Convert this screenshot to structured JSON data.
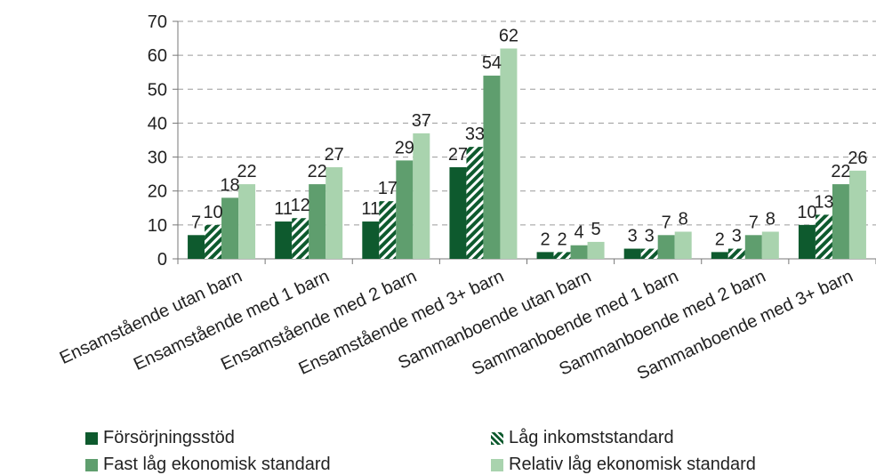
{
  "chart_data": {
    "type": "bar",
    "categories": [
      "Ensamstående utan barn",
      "Ensamstående med 1 barn",
      "Ensamstående med 2 barn",
      "Ensamstående med 3+ barn",
      "Sammanboende utan barn",
      "Sammanboende med 1 barn",
      "Sammanboende med 2 barn",
      "Sammanboende med 3+ barn"
    ],
    "series": [
      {
        "name": "Försörjningsstöd",
        "values": [
          7,
          11,
          11,
          27,
          2,
          3,
          2,
          10
        ],
        "color": "#0e5a2e",
        "pattern": "solid"
      },
      {
        "name": "Låg inkomststandard",
        "values": [
          10,
          12,
          17,
          33,
          2,
          3,
          3,
          13
        ],
        "color": "#0e5a2e",
        "pattern": "hatched"
      },
      {
        "name": "Fast låg ekonomisk standard",
        "values": [
          18,
          22,
          29,
          54,
          4,
          7,
          7,
          22
        ],
        "color": "#5f9e6e",
        "pattern": "solid"
      },
      {
        "name": "Relativ låg ekonomisk standard",
        "values": [
          22,
          27,
          37,
          62,
          5,
          8,
          8,
          26
        ],
        "color": "#a9d3ae",
        "pattern": "solid"
      }
    ],
    "ylim": [
      0,
      70
    ],
    "yticks": [
      0,
      10,
      20,
      30,
      40,
      50,
      60,
      70
    ],
    "grid": true,
    "legend_position": "bottom",
    "title": "",
    "xlabel": "",
    "ylabel": ""
  }
}
